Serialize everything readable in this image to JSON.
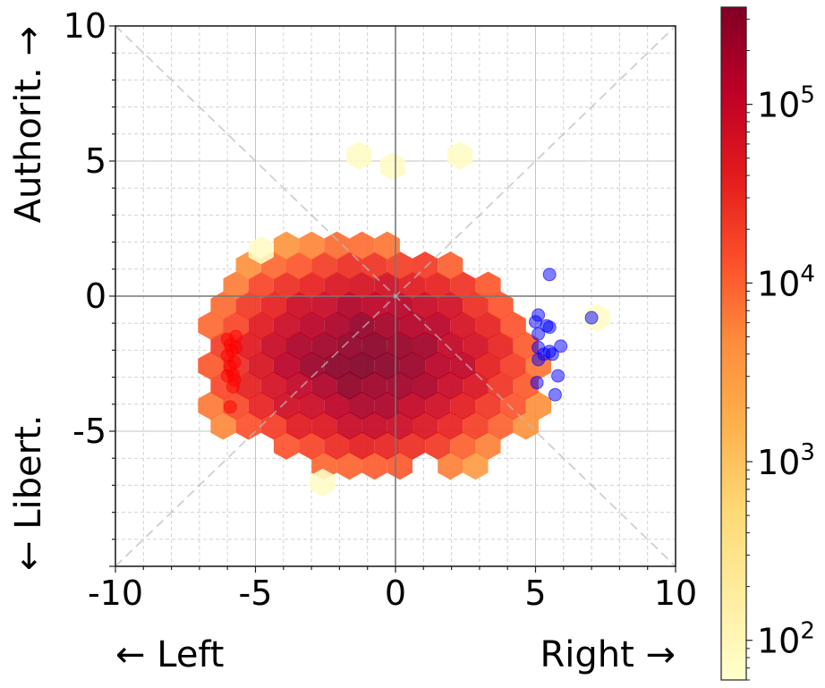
{
  "chart_data": {
    "type": "hexbin-scatter",
    "xlim": [
      -10,
      10
    ],
    "ylim": [
      -10,
      10
    ],
    "xticks": [
      {
        "value": -10,
        "label": "-10"
      },
      {
        "value": -5,
        "label": "-5"
      },
      {
        "value": 0,
        "label": "0"
      },
      {
        "value": 5,
        "label": "5"
      },
      {
        "value": 10,
        "label": "10"
      }
    ],
    "yticks": [
      {
        "value": 10,
        "label": "10"
      },
      {
        "value": 5,
        "label": "5"
      },
      {
        "value": 0,
        "label": "0"
      },
      {
        "value": -5,
        "label": "-5"
      }
    ],
    "xlabel_left": "← Left",
    "xlabel_right": "Right →",
    "ylabel_top": "Authorit. →",
    "ylabel_bottom": "← Libert.",
    "grid": true,
    "diagonals": true,
    "colorbar": {
      "scale": "log",
      "range": [
        60,
        350000
      ],
      "colormap": "YlOrRd",
      "ticks": [
        {
          "value": 100,
          "base": "10",
          "exp": "2"
        },
        {
          "value": 1000,
          "base": "10",
          "exp": "3"
        },
        {
          "value": 10000,
          "base": "10",
          "exp": "4"
        },
        {
          "value": 100000,
          "base": "10",
          "exp": "5"
        }
      ]
    },
    "hexbin": {
      "center": [
        -0.9,
        -2.3
      ],
      "sigma": [
        2.2,
        1.55
      ],
      "peak_count": 300000,
      "min_count": 60,
      "max_radius": 2.85
    },
    "red_points": [
      {
        "x": -6.0,
        "y": -1.6
      },
      {
        "x": -5.9,
        "y": -1.8
      },
      {
        "x": -5.85,
        "y": -2.0
      },
      {
        "x": -5.7,
        "y": -1.5
      },
      {
        "x": -5.7,
        "y": -1.9
      },
      {
        "x": -6.0,
        "y": -2.2
      },
      {
        "x": -5.9,
        "y": -2.6
      },
      {
        "x": -5.8,
        "y": -2.9
      },
      {
        "x": -6.0,
        "y": -2.95
      },
      {
        "x": -5.75,
        "y": -3.1
      },
      {
        "x": -5.8,
        "y": -3.35
      },
      {
        "x": -5.9,
        "y": -4.1
      },
      {
        "x": -5.75,
        "y": -2.45
      }
    ],
    "blue_points": [
      {
        "x": 5.5,
        "y": 0.8
      },
      {
        "x": 7.0,
        "y": -0.8
      },
      {
        "x": 5.0,
        "y": -0.95
      },
      {
        "x": 5.1,
        "y": -0.7
      },
      {
        "x": 5.4,
        "y": -1.1
      },
      {
        "x": 5.5,
        "y": -1.15
      },
      {
        "x": 5.1,
        "y": -1.4
      },
      {
        "x": 5.1,
        "y": -1.9
      },
      {
        "x": 5.3,
        "y": -2.15
      },
      {
        "x": 5.5,
        "y": -2.05
      },
      {
        "x": 5.6,
        "y": -2.15
      },
      {
        "x": 5.9,
        "y": -1.85
      },
      {
        "x": 5.1,
        "y": -2.35
      },
      {
        "x": 5.8,
        "y": -2.95
      },
      {
        "x": 5.05,
        "y": -3.2
      },
      {
        "x": 5.7,
        "y": -3.65
      }
    ]
  }
}
